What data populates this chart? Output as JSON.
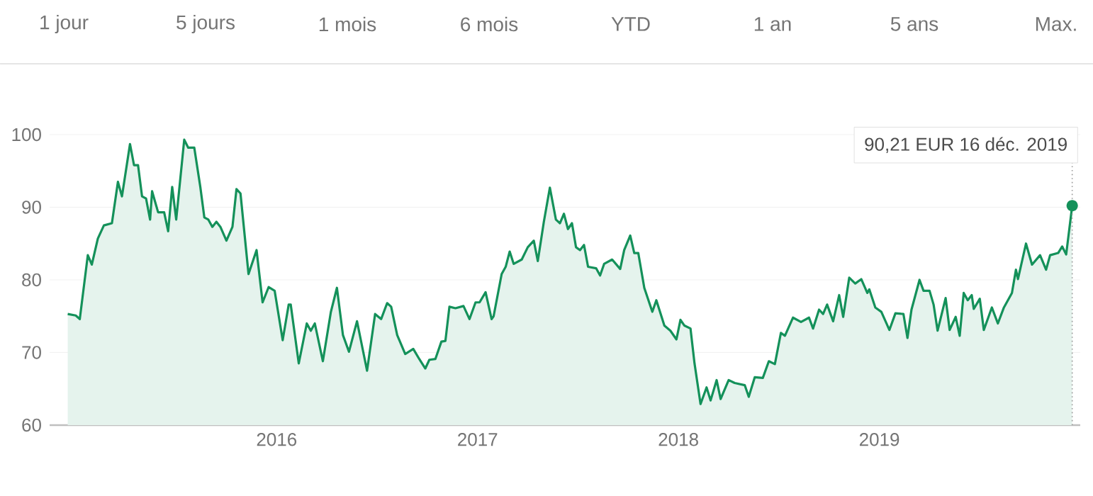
{
  "chart_data": {
    "type": "area",
    "color": "#14915a",
    "x": [
      2014.96,
      2015.0,
      2015.02,
      2015.06,
      2015.08,
      2015.11,
      2015.14,
      2015.18,
      2015.21,
      2015.23,
      2015.27,
      2015.29,
      2015.31,
      2015.33,
      2015.35,
      2015.37,
      2015.38,
      2015.41,
      2015.44,
      2015.46,
      2015.48,
      2015.5,
      2015.54,
      2015.56,
      2015.59,
      2015.62,
      2015.64,
      2015.66,
      2015.68,
      2015.7,
      2015.72,
      2015.75,
      2015.78,
      2015.8,
      2015.82,
      2015.86,
      2015.9,
      2015.93,
      2015.96,
      2015.99,
      2016.03,
      2016.06,
      2016.07,
      2016.11,
      2016.15,
      2016.17,
      2016.19,
      2016.23,
      2016.27,
      2016.3,
      2016.33,
      2016.36,
      2016.4,
      2016.45,
      2016.49,
      2016.52,
      2016.55,
      2016.57,
      2016.6,
      2016.64,
      2016.68,
      2016.71,
      2016.74,
      2016.76,
      2016.79,
      2016.82,
      2016.84,
      2016.86,
      2016.89,
      2016.93,
      2016.96,
      2016.99,
      2017.01,
      2017.04,
      2017.07,
      2017.08,
      2017.12,
      2017.14,
      2017.16,
      2017.18,
      2017.22,
      2017.25,
      2017.28,
      2017.3,
      2017.33,
      2017.36,
      2017.39,
      2017.41,
      2017.43,
      2017.45,
      2017.47,
      2017.49,
      2017.51,
      2017.53,
      2017.55,
      2017.59,
      2017.61,
      2017.63,
      2017.67,
      2017.71,
      2017.73,
      2017.76,
      2017.78,
      2017.8,
      2017.83,
      2017.87,
      2017.89,
      2017.93,
      2017.96,
      2017.99,
      2018.01,
      2018.03,
      2018.06,
      2018.08,
      2018.11,
      2018.14,
      2018.16,
      2018.19,
      2018.21,
      2018.25,
      2018.28,
      2018.33,
      2018.35,
      2018.38,
      2018.42,
      2018.45,
      2018.48,
      2018.51,
      2018.53,
      2018.57,
      2018.61,
      2018.65,
      2018.67,
      2018.7,
      2018.72,
      2018.74,
      2018.77,
      2018.8,
      2018.82,
      2018.85,
      2018.88,
      2018.91,
      2018.94,
      2018.95,
      2018.98,
      2019.01,
      2019.05,
      2019.08,
      2019.12,
      2019.14,
      2019.16,
      2019.2,
      2019.22,
      2019.25,
      2019.27,
      2019.29,
      2019.33,
      2019.35,
      2019.38,
      2019.4,
      2019.42,
      2019.44,
      2019.46,
      2019.47,
      2019.5,
      2019.52,
      2019.56,
      2019.59,
      2019.62,
      2019.66,
      2019.68,
      2019.69,
      2019.73,
      2019.76,
      2019.8,
      2019.83,
      2019.85,
      2019.89,
      2019.91,
      2019.93,
      2019.96
    ],
    "values": [
      75.3,
      75.1,
      74.6,
      83.4,
      82.1,
      85.7,
      87.5,
      87.8,
      93.5,
      91.5,
      98.7,
      95.8,
      95.8,
      91.5,
      91.2,
      88.3,
      92.2,
      89.3,
      89.3,
      86.7,
      92.8,
      88.3,
      99.3,
      98.2,
      98.2,
      92.8,
      88.6,
      88.3,
      87.3,
      88.0,
      87.3,
      85.4,
      87.3,
      92.5,
      91.9,
      80.8,
      84.1,
      76.9,
      79.0,
      78.5,
      71.7,
      76.6,
      76.6,
      68.5,
      74.0,
      73.0,
      74.0,
      68.8,
      75.6,
      78.9,
      72.4,
      70.1,
      74.3,
      67.5,
      75.3,
      74.6,
      76.8,
      76.3,
      72.4,
      69.8,
      70.5,
      69.1,
      67.8,
      69.0,
      69.1,
      71.5,
      71.6,
      76.3,
      76.1,
      76.4,
      74.6,
      76.9,
      76.9,
      78.3,
      74.6,
      75.0,
      80.8,
      81.8,
      83.9,
      82.2,
      82.8,
      84.5,
      85.4,
      82.6,
      88.0,
      92.7,
      88.3,
      87.8,
      89.1,
      87.0,
      87.8,
      84.5,
      84.1,
      84.8,
      81.8,
      81.6,
      80.6,
      82.2,
      82.8,
      81.5,
      84.1,
      86.1,
      83.7,
      83.7,
      78.9,
      75.6,
      77.2,
      73.7,
      73.0,
      71.8,
      74.5,
      73.7,
      73.3,
      68.5,
      62.9,
      65.2,
      63.4,
      66.2,
      63.6,
      66.2,
      65.8,
      65.5,
      63.9,
      66.6,
      66.5,
      68.8,
      68.4,
      72.7,
      72.3,
      74.8,
      74.2,
      74.8,
      73.3,
      75.9,
      75.3,
      76.6,
      74.3,
      77.9,
      74.9,
      80.3,
      79.5,
      80.1,
      78.2,
      78.7,
      76.2,
      75.6,
      73.1,
      75.4,
      75.3,
      72.0,
      75.9,
      80.0,
      78.5,
      78.5,
      76.6,
      73.0,
      77.5,
      73.1,
      74.9,
      72.3,
      78.2,
      77.2,
      77.9,
      76.0,
      77.4,
      73.1,
      76.2,
      74.0,
      76.2,
      78.2,
      81.4,
      80.1,
      85.0,
      82.1,
      83.4,
      81.4,
      83.4,
      83.7,
      84.6,
      83.5,
      90.21
    ],
    "xlim": [
      2014.87,
      2020.0
    ],
    "xticks": [
      2016,
      2017,
      2018,
      2019
    ],
    "ref_lines": [
      {
        "axis": "x",
        "value": 2019.96,
        "color": "#999999",
        "line_style": "dotted"
      }
    ],
    "ylim": [
      60,
      100
    ],
    "yticks": [
      60,
      70,
      80,
      90,
      100
    ],
    "grid": "y",
    "annotations": [
      "1 jour",
      "5 jours",
      "1 mois",
      "6 mois",
      "YTD",
      "1 an",
      "5 ans",
      "Max.",
      {
        "text": "90,21 EUR  16 déc. 2019",
        "x": 2019.96,
        "y": 90.21
      }
    ]
  }
}
